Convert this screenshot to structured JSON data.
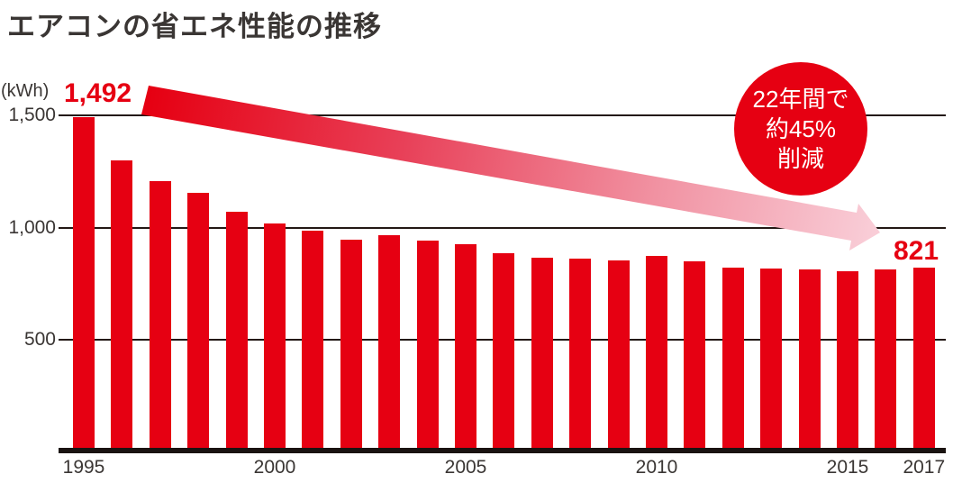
{
  "title": "エアコンの省エネ性能の推移",
  "y_axis": {
    "unit": "(kWh)"
  },
  "annotations": {
    "start_value": "1,492",
    "end_value": "821",
    "badge_lines": [
      "22年間で",
      "約45%",
      "削減"
    ]
  },
  "colors": {
    "bar": "#e60012",
    "badge": "#e60012",
    "value_text": "#e60012",
    "axis_text": "#3a3634",
    "grid": "#231815",
    "arrow_start": "#e60012",
    "arrow_end": "#f9cdd7"
  },
  "chart_data": {
    "type": "bar",
    "title": "エアコンの省エネ性能の推移",
    "ylabel": "(kWh)",
    "xlabel": "",
    "x": [
      1995,
      1996,
      1997,
      1998,
      1999,
      2000,
      2001,
      2002,
      2003,
      2004,
      2005,
      2006,
      2007,
      2008,
      2009,
      2010,
      2011,
      2012,
      2013,
      2014,
      2015,
      2016,
      2017
    ],
    "values": [
      1492,
      1300,
      1205,
      1155,
      1070,
      1020,
      985,
      945,
      965,
      940,
      925,
      885,
      865,
      860,
      855,
      875,
      850,
      820,
      818,
      815,
      805,
      812,
      821
    ],
    "yticks": [
      1500,
      1000,
      500
    ],
    "ytick_labels": [
      "1,500",
      "1,000",
      "500"
    ],
    "xticks_shown": {
      "1995": "1995",
      "2000": "2000",
      "2005": "2005",
      "2010": "2010",
      "2015": "2015",
      "2017": "2017"
    },
    "ylim": [
      0,
      1600
    ],
    "grid": true,
    "legend": false,
    "annotation_note": "22年間で約45%削減",
    "first_bar_label": "1,492",
    "last_bar_label": "821"
  }
}
